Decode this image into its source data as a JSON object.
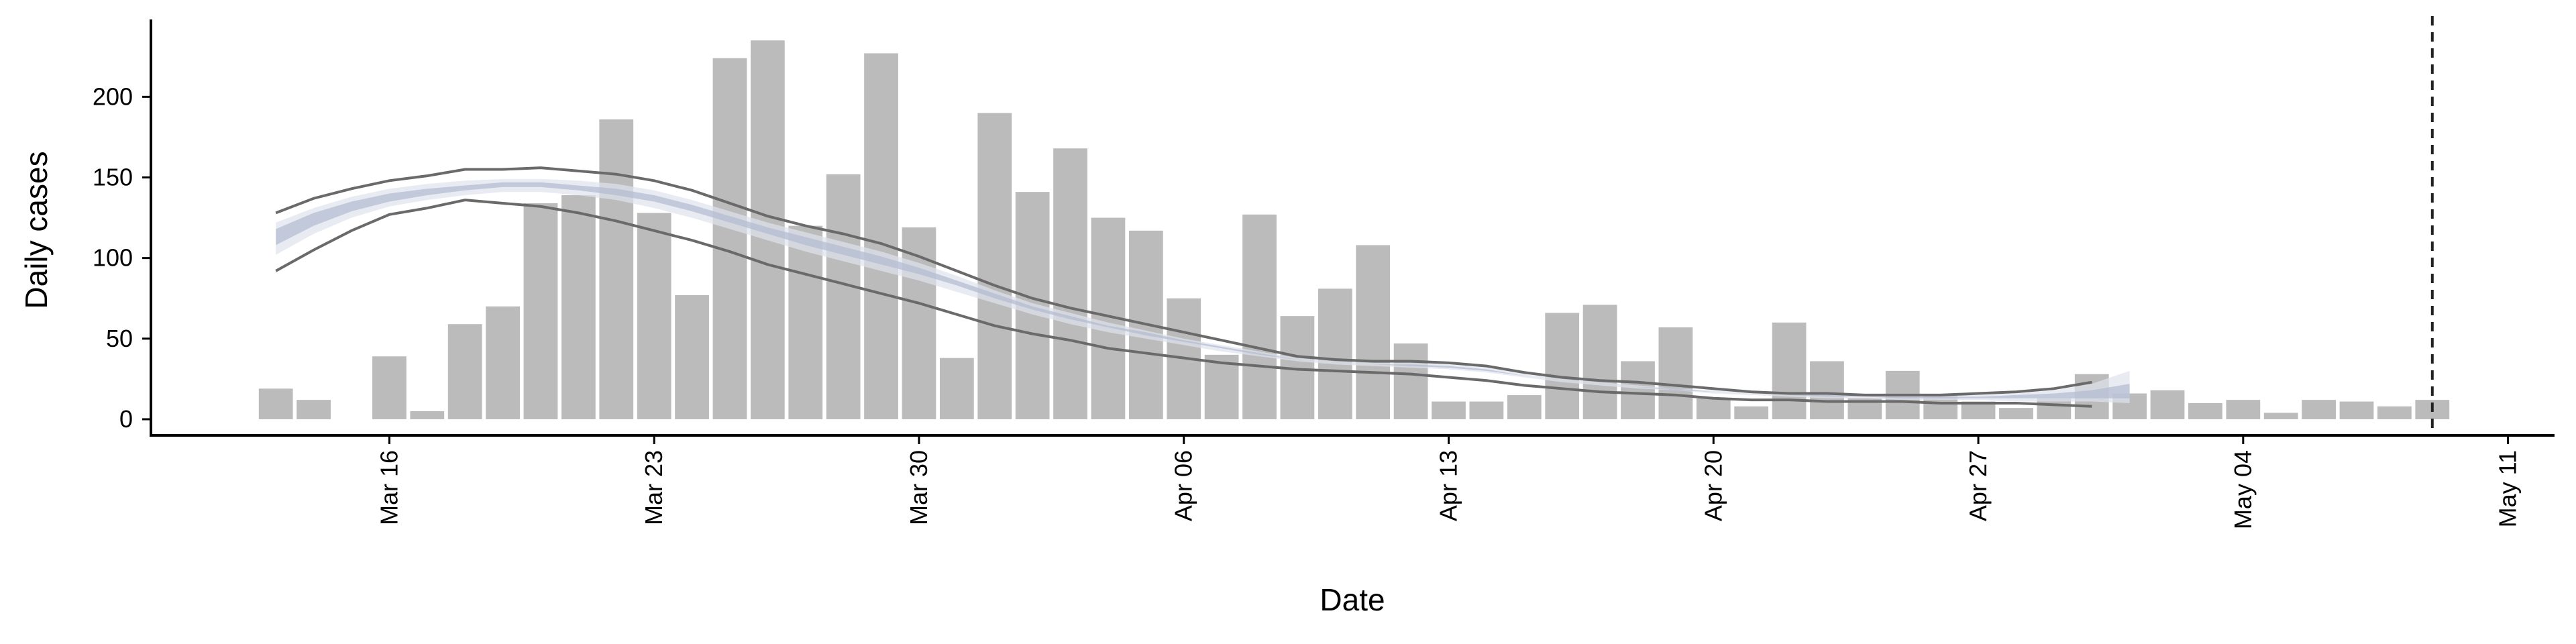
{
  "chart_data": {
    "type": "bar",
    "x_label": "Date",
    "y_label": "Daily cases",
    "x": [
      "Mar 13",
      "Mar 14",
      "Mar 15",
      "Mar 16",
      "Mar 17",
      "Mar 18",
      "Mar 19",
      "Mar 20",
      "Mar 21",
      "Mar 22",
      "Mar 23",
      "Mar 24",
      "Mar 25",
      "Mar 26",
      "Mar 27",
      "Mar 28",
      "Mar 29",
      "Mar 30",
      "Mar 31",
      "Apr 01",
      "Apr 02",
      "Apr 03",
      "Apr 04",
      "Apr 05",
      "Apr 06",
      "Apr 07",
      "Apr 08",
      "Apr 09",
      "Apr 10",
      "Apr 11",
      "Apr 12",
      "Apr 13",
      "Apr 14",
      "Apr 15",
      "Apr 16",
      "Apr 17",
      "Apr 18",
      "Apr 19",
      "Apr 20",
      "Apr 21",
      "Apr 22",
      "Apr 23",
      "Apr 24",
      "Apr 25",
      "Apr 26",
      "Apr 27",
      "Apr 28",
      "Apr 29",
      "Apr 30",
      "May 01",
      "May 02",
      "May 03",
      "May 04",
      "May 05",
      "May 06",
      "May 07",
      "May 08",
      "May 09"
    ],
    "values": [
      19,
      12,
      0,
      39,
      5,
      59,
      70,
      134,
      139,
      186,
      128,
      77,
      224,
      235,
      120,
      152,
      227,
      119,
      38,
      190,
      141,
      168,
      125,
      117,
      75,
      40,
      127,
      64,
      81,
      108,
      47,
      11,
      11,
      15,
      66,
      71,
      36,
      57,
      13,
      8,
      60,
      36,
      13,
      30,
      15,
      11,
      7,
      13,
      28,
      16,
      18,
      10,
      12,
      4,
      12,
      11,
      8,
      12
    ],
    "color": "#bbbbbb",
    "bands": [
      {
        "color": "#dfe3ed",
        "low": [
          102,
          115,
          125,
          132,
          136,
          139,
          141,
          141,
          139,
          136,
          131,
          125,
          118,
          111,
          104,
          98,
          92,
          86,
          79,
          72,
          65,
          59,
          54,
          50,
          46,
          42,
          39,
          36,
          34,
          33,
          32,
          31,
          29,
          26,
          23,
          21,
          19,
          18,
          16,
          15,
          14,
          13,
          13,
          12,
          12,
          12,
          11,
          11,
          11,
          10,
          null,
          null,
          null,
          null,
          null,
          null,
          null,
          null
        ],
        "high": [
          122,
          131,
          138,
          143,
          146,
          148,
          149,
          149,
          148,
          146,
          142,
          136,
          129,
          122,
          116,
          110,
          104,
          97,
          89,
          80,
          72,
          66,
          60,
          55,
          50,
          46,
          42,
          38,
          36,
          35,
          35,
          34,
          32,
          28,
          25,
          23,
          21,
          19,
          18,
          17,
          16,
          16,
          15,
          15,
          15,
          15,
          16,
          18,
          22,
          30,
          null,
          null,
          null,
          null,
          null,
          null,
          null,
          null
        ]
      },
      {
        "color": "#b0bad1",
        "low": [
          108,
          120,
          129,
          135,
          139,
          142,
          144,
          144,
          142,
          139,
          135,
          129,
          122,
          115,
          108,
          102,
          96,
          90,
          83,
          75,
          68,
          62,
          57,
          52,
          48,
          44,
          40,
          37,
          35,
          34,
          33,
          32,
          30,
          27,
          24,
          22,
          20,
          18,
          17,
          16,
          15,
          14,
          14,
          13,
          13,
          13,
          13,
          13,
          13,
          13,
          null,
          null,
          null,
          null,
          null,
          null,
          null,
          null
        ],
        "high": [
          118,
          128,
          135,
          140,
          143,
          145,
          147,
          147,
          145,
          143,
          139,
          133,
          126,
          119,
          113,
          107,
          101,
          94,
          86,
          78,
          70,
          64,
          58,
          54,
          49,
          45,
          41,
          37,
          35,
          34,
          34,
          33,
          31,
          27,
          24,
          22,
          20,
          19,
          17,
          16,
          15,
          15,
          14,
          14,
          14,
          14,
          15,
          16,
          18,
          22,
          null,
          null,
          null,
          null,
          null,
          null,
          null,
          null
        ]
      }
    ],
    "lines": [
      {
        "color": "#6a6a6a",
        "values": [
          128,
          137,
          143,
          148,
          151,
          155,
          155,
          156,
          154,
          152,
          148,
          142,
          134,
          126,
          120,
          115,
          109,
          101,
          92,
          83,
          75,
          69,
          64,
          59,
          54,
          49,
          44,
          39,
          37,
          36,
          36,
          35,
          33,
          29,
          26,
          24,
          23,
          21,
          19,
          17,
          16,
          16,
          15,
          15,
          15,
          16,
          17,
          19,
          23,
          null,
          null,
          null,
          null,
          null,
          null,
          null,
          null,
          null
        ]
      },
      {
        "color": "#6a6a6a",
        "values": [
          92,
          105,
          117,
          127,
          131,
          136,
          134,
          132,
          128,
          123,
          117,
          111,
          104,
          96,
          90,
          84,
          78,
          72,
          65,
          58,
          53,
          49,
          44,
          41,
          38,
          35,
          33,
          31,
          30,
          29,
          28,
          26,
          24,
          21,
          19,
          17,
          16,
          15,
          13,
          12,
          12,
          11,
          11,
          11,
          10,
          10,
          10,
          9,
          8,
          null,
          null,
          null,
          null,
          null,
          null,
          null,
          null,
          null
        ]
      }
    ],
    "vline": "May 09",
    "xlim": [
      "Mar 10",
      "May 12"
    ],
    "xticks": [
      "Mar 16",
      "Mar 23",
      "Mar 30",
      "Apr 06",
      "Apr 13",
      "Apr 20",
      "Apr 27",
      "May 04",
      "May 11"
    ],
    "ylim": [
      -10,
      248
    ],
    "yticks": [
      0,
      50,
      100,
      150,
      200
    ],
    "grid": false
  }
}
